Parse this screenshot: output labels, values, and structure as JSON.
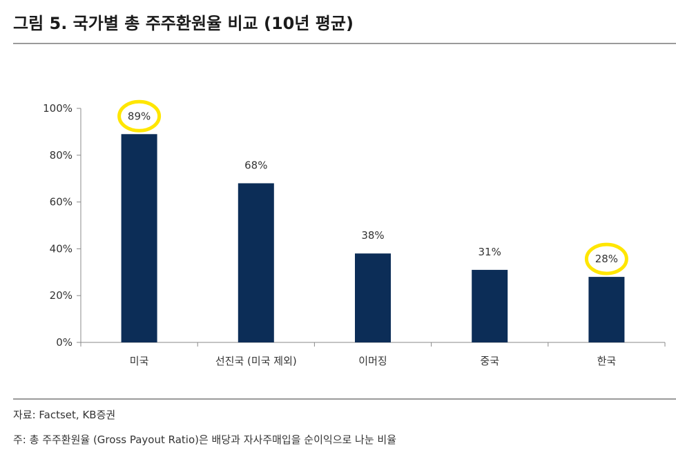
{
  "header": {
    "title": "그림 5. 국가별 총 주주환원율 비교 (10년 평균)"
  },
  "chart_data": {
    "type": "bar",
    "categories": [
      "미국",
      "선진국 (미국 제외)",
      "이머징",
      "중국",
      "한국"
    ],
    "values": [
      89,
      68,
      38,
      31,
      28
    ],
    "data_labels": [
      "89%",
      "68%",
      "38%",
      "31%",
      "28%"
    ],
    "highlighted": [
      "미국",
      "한국"
    ],
    "yticks": [
      "0%",
      "20%",
      "40%",
      "60%",
      "80%",
      "100%"
    ],
    "ylim": [
      0,
      100
    ],
    "ystep": 20,
    "grid": false,
    "legend": "none",
    "colors": {
      "bar": "#0c2d57",
      "axis": "#888888",
      "highlight": "#ffe600"
    }
  },
  "footer": {
    "source": "자료: Factset, KB증권",
    "note": "주: 총 주주환원율 (Gross Payout Ratio)은 배당과 자사주매입을 순이익으로 나눈 비율"
  }
}
